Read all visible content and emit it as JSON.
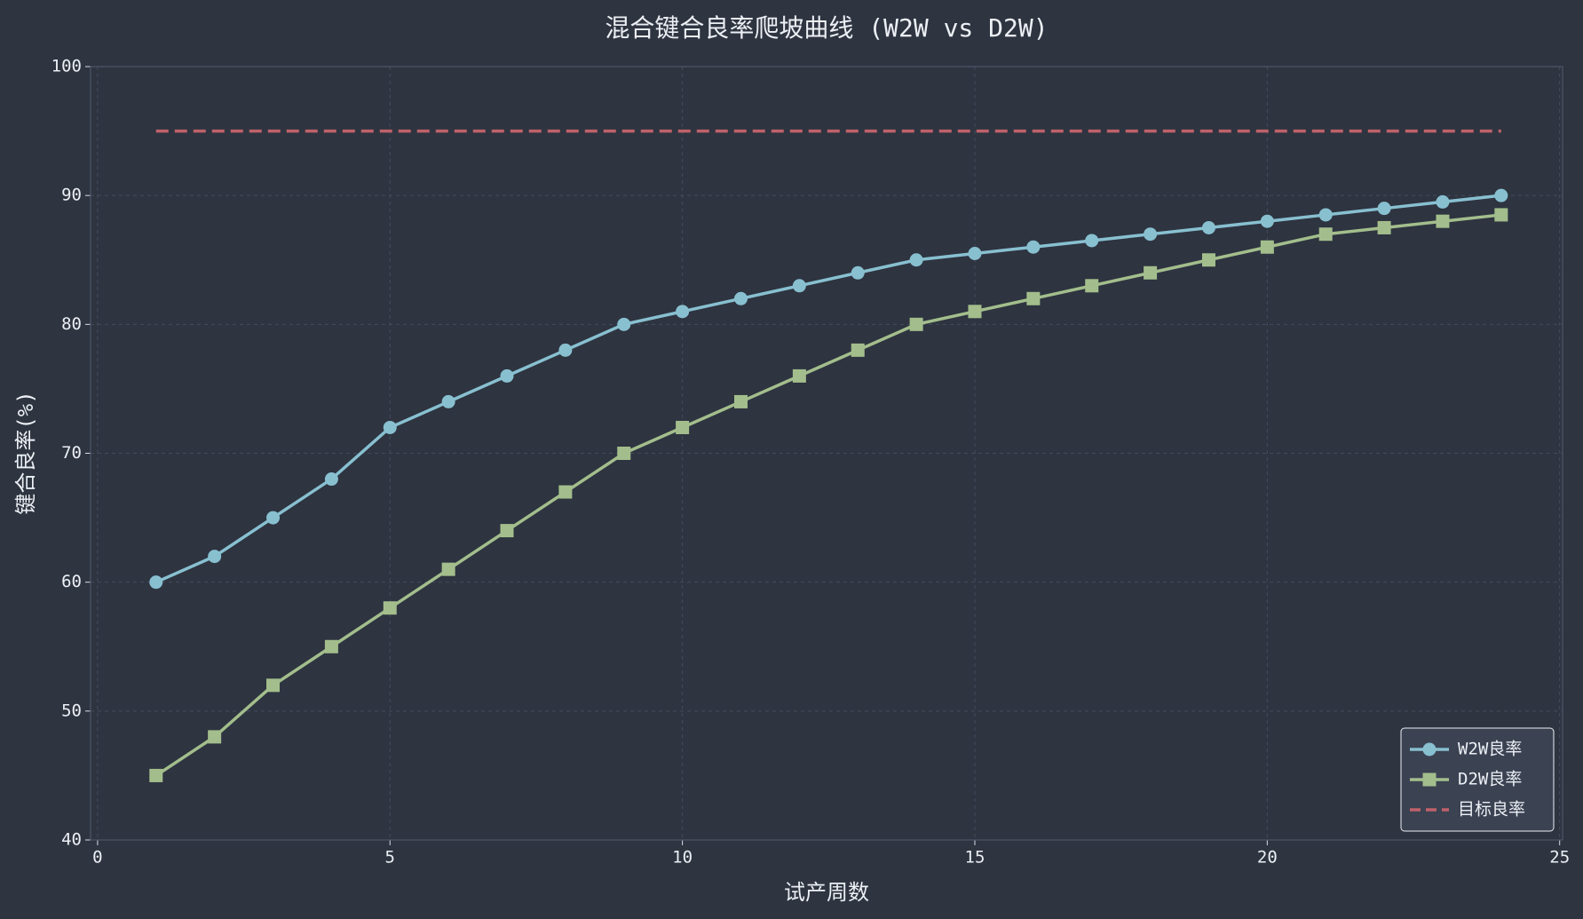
{
  "chart_data": {
    "type": "line",
    "title": "混合键合良率爬坡曲线 (W2W vs D2W)",
    "xlabel": "试产周数",
    "ylabel": "键合良率(%)",
    "x": [
      1,
      2,
      3,
      4,
      5,
      6,
      7,
      8,
      9,
      10,
      11,
      12,
      13,
      14,
      15,
      16,
      17,
      18,
      19,
      20,
      21,
      22,
      23,
      24
    ],
    "series": [
      {
        "name": "W2W良率",
        "color": "#88c0d0",
        "marker": "circle",
        "linestyle": "solid",
        "values": [
          60,
          62,
          65,
          68,
          72,
          74,
          76,
          78,
          80,
          81,
          82,
          83,
          84,
          85,
          85.5,
          86,
          86.5,
          87,
          87.5,
          88,
          88.5,
          89,
          89.5,
          90
        ]
      },
      {
        "name": "D2W良率",
        "color": "#a3be8c",
        "marker": "square",
        "linestyle": "solid",
        "values": [
          45,
          48,
          52,
          55,
          58,
          61,
          64,
          67,
          70,
          72,
          74,
          76,
          78,
          80,
          81,
          82,
          83,
          84,
          85,
          86,
          87,
          87.5,
          88,
          88.5
        ]
      },
      {
        "name": "目标良率",
        "color": "#bf616a",
        "marker": null,
        "linestyle": "dashed",
        "values": [
          95,
          95,
          95,
          95,
          95,
          95,
          95,
          95,
          95,
          95,
          95,
          95,
          95,
          95,
          95,
          95,
          95,
          95,
          95,
          95,
          95,
          95,
          95,
          95
        ]
      }
    ],
    "xlim": [
      -0.12,
      25.05
    ],
    "xticks": [
      0,
      5,
      10,
      15,
      20,
      25
    ],
    "ylim": [
      40,
      100
    ],
    "yticks": [
      40,
      50,
      60,
      70,
      80,
      90,
      100
    ],
    "grid": true,
    "legend": "lower right"
  }
}
